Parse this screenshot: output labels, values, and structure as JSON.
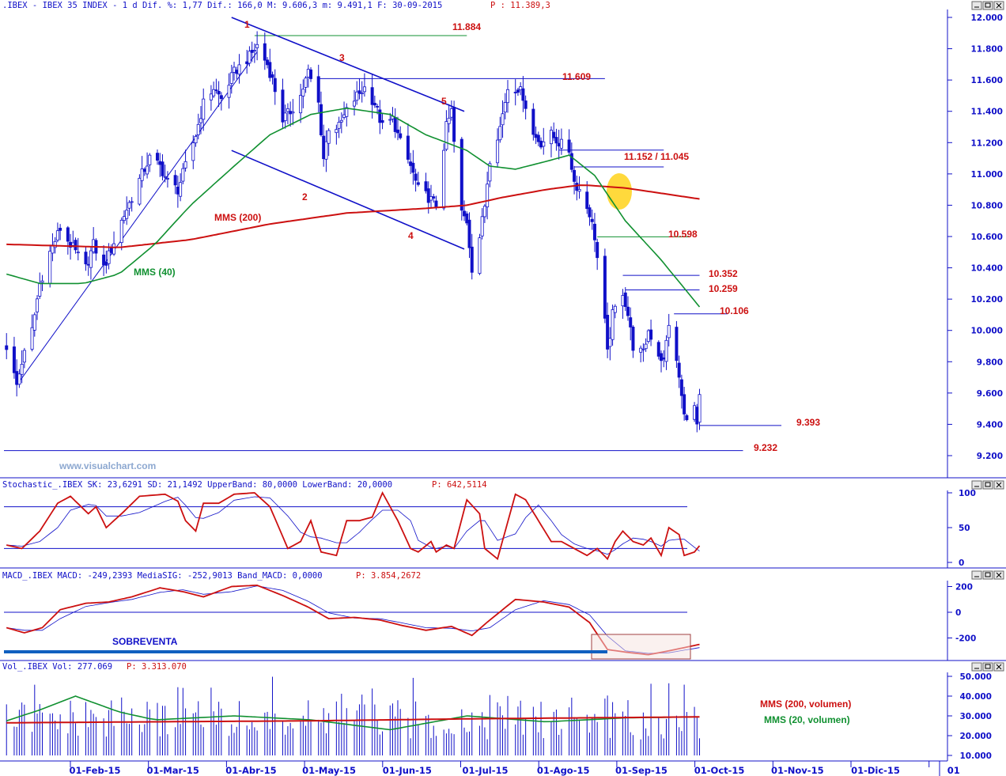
{
  "header": {
    "main": ".IBEX - IBEX 35 INDEX -   1 d Dif. %: 1,77 Dif.: 166,0 M: 9.606,3 m: 9.491,1 F: 30-09-2015",
    "main_p": "P : 11.389,3",
    "stoch": "Stochastic_.IBEX SK: 23,6291 SD: 21,1492 UpperBand: 80,0000 LowerBand: 20,0000",
    "stoch_p": "P: 642,5114",
    "macd": "MACD_.IBEX MACD: -249,2393 MediaSIG: -252,9013 Band_MACD: 0,0000",
    "macd_p": "P: 3.854,2672",
    "vol": "Vol_.IBEX Vol: 277.069",
    "vol_p": "P: 3.313.070"
  },
  "watermark": "www.visualchart.com",
  "colors": {
    "up": "#ffffff",
    "down": "#1010c8",
    "mms200": "#cc1010",
    "mms40": "#109030",
    "trend": "#1010c8",
    "label": "#cc1010",
    "grid": "#1010c8"
  },
  "annotations": {
    "mms200": "MMS (200)",
    "mms40": "MMS (40)",
    "sobreventa": "SOBREVENTA",
    "vol_mms200": "MMS (200, volumen)",
    "vol_mms20": "MMS (20, volumen)",
    "wave1": "1",
    "wave2": "2",
    "wave3": "3",
    "wave4": "4",
    "wave5": "5",
    "lvl_11884": "11.884",
    "lvl_11609": "11.609",
    "lvl_11152": "11.152 / 11.045",
    "lvl_10598": "10.598",
    "lvl_10352": "10.352",
    "lvl_10259": "10.259",
    "lvl_10106": "10.106",
    "lvl_9393": "9.393",
    "lvl_9232": "9.232"
  },
  "chart_data": [
    {
      "type": "candlestick",
      "title": "IBEX 35 INDEX",
      "ylim": [
        9100,
        12100
      ],
      "y_ticks": [
        "12.000",
        "11.800",
        "11.600",
        "11.400",
        "11.200",
        "11.000",
        "10.800",
        "10.600",
        "10.400",
        "10.200",
        "10.000",
        "9.800",
        "9.600",
        "9.400",
        "9.200"
      ],
      "x_ticks": [
        "01-Feb-15",
        "01-Mar-15",
        "01-Abr-15",
        "01-May-15",
        "01-Jun-15",
        "01-Jul-15",
        "01-Ago-15",
        "01-Sep-15",
        "01-Oct-15",
        "01-Nov-15",
        "01-Dic-15",
        "01"
      ],
      "close_anchors": [
        [
          "2015-01-02",
          9900
        ],
        [
          "2015-01-06",
          9650
        ],
        [
          "2015-01-08",
          9800
        ],
        [
          "2015-01-12",
          10000
        ],
        [
          "2015-01-15",
          10300
        ],
        [
          "2015-01-19",
          10500
        ],
        [
          "2015-01-23",
          10650
        ],
        [
          "2015-01-27",
          10550
        ],
        [
          "2015-02-02",
          10400
        ],
        [
          "2015-02-05",
          10550
        ],
        [
          "2015-02-09",
          10400
        ],
        [
          "2015-02-12",
          10520
        ],
        [
          "2015-02-16",
          10700
        ],
        [
          "2015-02-20",
          10850
        ],
        [
          "2015-02-24",
          11000
        ],
        [
          "2015-02-27",
          11100
        ],
        [
          "2015-03-03",
          11050
        ],
        [
          "2015-03-06",
          10950
        ],
        [
          "2015-03-10",
          10900
        ],
        [
          "2015-03-13",
          11050
        ],
        [
          "2015-03-17",
          11250
        ],
        [
          "2015-03-20",
          11450
        ],
        [
          "2015-03-24",
          11550
        ],
        [
          "2015-03-27",
          11480
        ],
        [
          "2015-04-01",
          11650
        ],
        [
          "2015-04-07",
          11750
        ],
        [
          "2015-04-10",
          11820
        ],
        [
          "2015-04-14",
          11700
        ],
        [
          "2015-04-16",
          11600
        ],
        [
          "2015-04-20",
          11350
        ],
        [
          "2015-04-23",
          11400
        ],
        [
          "2015-04-27",
          11500
        ],
        [
          "2015-04-30",
          11650
        ],
        [
          "2015-05-04",
          11450
        ],
        [
          "2015-05-06",
          11100
        ],
        [
          "2015-05-08",
          11300
        ],
        [
          "2015-05-12",
          11300
        ],
        [
          "2015-05-15",
          11400
        ],
        [
          "2015-05-19",
          11500
        ],
        [
          "2015-05-22",
          11550
        ],
        [
          "2015-05-26",
          11450
        ],
        [
          "2015-05-29",
          11300
        ],
        [
          "2015-06-02",
          11350
        ],
        [
          "2015-06-05",
          11200
        ],
        [
          "2015-06-09",
          11050
        ],
        [
          "2015-06-12",
          10900
        ],
        [
          "2015-06-16",
          10850
        ],
        [
          "2015-06-19",
          10800
        ],
        [
          "2015-06-23",
          11300
        ],
        [
          "2015-06-25",
          11400
        ],
        [
          "2015-06-26",
          11200
        ],
        [
          "2015-06-29",
          10750
        ],
        [
          "2015-07-01",
          10700
        ],
        [
          "2015-07-03",
          10400
        ],
        [
          "2015-07-06",
          10600
        ],
        [
          "2015-07-08",
          10800
        ],
        [
          "2015-07-10",
          11100
        ],
        [
          "2015-07-14",
          11300
        ],
        [
          "2015-07-17",
          11550
        ],
        [
          "2015-07-21",
          11550
        ],
        [
          "2015-07-23",
          11500
        ],
        [
          "2015-07-27",
          11250
        ],
        [
          "2015-07-30",
          11200
        ],
        [
          "2015-08-03",
          11250
        ],
        [
          "2015-08-06",
          11200
        ],
        [
          "2015-08-10",
          11150
        ],
        [
          "2015-08-12",
          10950
        ],
        [
          "2015-08-14",
          10900
        ],
        [
          "2015-08-18",
          10750
        ],
        [
          "2015-08-20",
          10600
        ],
        [
          "2015-08-24",
          10050
        ],
        [
          "2015-08-25",
          9850
        ],
        [
          "2015-08-27",
          10100
        ],
        [
          "2015-08-31",
          10250
        ],
        [
          "2015-09-02",
          10100
        ],
        [
          "2015-09-04",
          9900
        ],
        [
          "2015-09-08",
          9850
        ],
        [
          "2015-09-10",
          10000
        ],
        [
          "2015-09-14",
          9850
        ],
        [
          "2015-09-16",
          9800
        ],
        [
          "2015-09-18",
          10050
        ],
        [
          "2015-09-22",
          9700
        ],
        [
          "2015-09-24",
          9450
        ],
        [
          "2015-09-28",
          9500
        ],
        [
          "2015-09-29",
          9393
        ],
        [
          "2015-09-30",
          9560
        ]
      ],
      "mms200": [
        [
          "2015-01-02",
          10550
        ],
        [
          "2015-02-15",
          10530
        ],
        [
          "2015-03-15",
          10580
        ],
        [
          "2015-04-15",
          10680
        ],
        [
          "2015-05-15",
          10750
        ],
        [
          "2015-06-15",
          10780
        ],
        [
          "2015-07-01",
          10800
        ],
        [
          "2015-07-15",
          10850
        ],
        [
          "2015-08-01",
          10900
        ],
        [
          "2015-08-15",
          10930
        ],
        [
          "2015-09-01",
          10910
        ],
        [
          "2015-09-30",
          10840
        ]
      ],
      "mms40": [
        [
          "2015-01-02",
          10360
        ],
        [
          "2015-01-15",
          10300
        ],
        [
          "2015-02-01",
          10300
        ],
        [
          "2015-02-15",
          10360
        ],
        [
          "2015-03-01",
          10550
        ],
        [
          "2015-03-15",
          10800
        ],
        [
          "2015-04-01",
          11050
        ],
        [
          "2015-04-15",
          11250
        ],
        [
          "2015-05-01",
          11380
        ],
        [
          "2015-05-15",
          11420
        ],
        [
          "2015-06-01",
          11380
        ],
        [
          "2015-06-15",
          11250
        ],
        [
          "2015-07-01",
          11150
        ],
        [
          "2015-07-10",
          11050
        ],
        [
          "2015-07-20",
          11030
        ],
        [
          "2015-08-01",
          11080
        ],
        [
          "2015-08-10",
          11120
        ],
        [
          "2015-08-20",
          10990
        ],
        [
          "2015-09-01",
          10700
        ],
        [
          "2015-09-15",
          10450
        ],
        [
          "2015-09-30",
          10150
        ]
      ],
      "trend_lines": [
        [
          [
            "2015-03-31",
            12000
          ],
          [
            "2015-06-30",
            11400
          ]
        ],
        [
          [
            "2015-03-31",
            11150
          ],
          [
            "2015-06-30",
            10520
          ]
        ],
        [
          [
            "2015-01-06",
            9650
          ],
          [
            "2015-04-10",
            11780
          ]
        ]
      ],
      "levels": [
        {
          "value": 11884,
          "from": "2015-04-09",
          "to": "2015-07-01",
          "color": "#109030"
        },
        {
          "value": 11609,
          "from": "2015-05-04",
          "to": "2015-08-24",
          "color": "#1010c8"
        },
        {
          "value": 11152,
          "from": "2015-08-06",
          "to": "2015-09-16",
          "color": "#1010c8"
        },
        {
          "value": 11045,
          "from": "2015-08-12",
          "to": "2015-09-16",
          "color": "#1010c8"
        },
        {
          "value": 10598,
          "from": "2015-08-21",
          "to": "2015-09-26",
          "color": "#109030"
        },
        {
          "value": 10352,
          "from": "2015-08-31",
          "to": "2015-09-30",
          "color": "#1010c8"
        },
        {
          "value": 10259,
          "from": "2015-09-01",
          "to": "2015-09-30",
          "color": "#1010c8"
        },
        {
          "value": 10106,
          "from": "2015-09-20",
          "to": "2015-10-11",
          "color": "#1010c8"
        },
        {
          "value": 9393,
          "from": "2015-09-30",
          "to": "2015-11-01",
          "color": "#1010c8"
        },
        {
          "value": 9232,
          "from": "2015-01-01",
          "to": "2015-10-17",
          "color": "#1010c8"
        }
      ]
    },
    {
      "type": "line",
      "title": "Stochastic_.IBEX",
      "ylim": [
        -5,
        105
      ],
      "y_ticks": [
        "100",
        "50",
        "0"
      ],
      "bands": [
        80,
        20
      ],
      "sk_anchors": [
        [
          "2015-01-02",
          25
        ],
        [
          "2015-01-08",
          20
        ],
        [
          "2015-01-15",
          45
        ],
        [
          "2015-01-22",
          85
        ],
        [
          "2015-01-27",
          95
        ],
        [
          "2015-02-03",
          70
        ],
        [
          "2015-02-06",
          80
        ],
        [
          "2015-02-10",
          50
        ],
        [
          "2015-02-16",
          70
        ],
        [
          "2015-02-23",
          95
        ],
        [
          "2015-03-05",
          98
        ],
        [
          "2015-03-10",
          88
        ],
        [
          "2015-03-13",
          60
        ],
        [
          "2015-03-17",
          45
        ],
        [
          "2015-03-20",
          85
        ],
        [
          "2015-03-26",
          85
        ],
        [
          "2015-04-01",
          98
        ],
        [
          "2015-04-09",
          100
        ],
        [
          "2015-04-15",
          80
        ],
        [
          "2015-04-22",
          20
        ],
        [
          "2015-04-27",
          30
        ],
        [
          "2015-05-01",
          60
        ],
        [
          "2015-05-05",
          15
        ],
        [
          "2015-05-11",
          10
        ],
        [
          "2015-05-15",
          60
        ],
        [
          "2015-05-20",
          60
        ],
        [
          "2015-05-25",
          65
        ],
        [
          "2015-05-29",
          100
        ],
        [
          "2015-06-04",
          60
        ],
        [
          "2015-06-09",
          20
        ],
        [
          "2015-06-12",
          15
        ],
        [
          "2015-06-17",
          30
        ],
        [
          "2015-06-19",
          15
        ],
        [
          "2015-06-23",
          25
        ],
        [
          "2015-06-26",
          20
        ],
        [
          "2015-07-01",
          90
        ],
        [
          "2015-07-06",
          70
        ],
        [
          "2015-07-08",
          20
        ],
        [
          "2015-07-13",
          5
        ],
        [
          "2015-07-20",
          98
        ],
        [
          "2015-07-24",
          90
        ],
        [
          "2015-07-29",
          60
        ],
        [
          "2015-08-03",
          30
        ],
        [
          "2015-08-07",
          30
        ],
        [
          "2015-08-12",
          20
        ],
        [
          "2015-08-17",
          10
        ],
        [
          "2015-08-21",
          20
        ],
        [
          "2015-08-25",
          5
        ],
        [
          "2015-08-28",
          30
        ],
        [
          "2015-08-31",
          45
        ],
        [
          "2015-09-04",
          30
        ],
        [
          "2015-09-08",
          25
        ],
        [
          "2015-09-11",
          35
        ],
        [
          "2015-09-15",
          10
        ],
        [
          "2015-09-18",
          50
        ],
        [
          "2015-09-22",
          40
        ],
        [
          "2015-09-24",
          10
        ],
        [
          "2015-09-28",
          15
        ],
        [
          "2015-09-30",
          24
        ]
      ]
    },
    {
      "type": "line",
      "title": "MACD_.IBEX",
      "ylim": [
        -360,
        260
      ],
      "y_ticks": [
        "200",
        "0",
        "-200"
      ],
      "macd_anchors": [
        [
          "2015-01-02",
          -120
        ],
        [
          "2015-01-09",
          -160
        ],
        [
          "2015-01-16",
          -120
        ],
        [
          "2015-01-23",
          20
        ],
        [
          "2015-02-02",
          70
        ],
        [
          "2015-02-11",
          80
        ],
        [
          "2015-02-20",
          120
        ],
        [
          "2015-03-03",
          190
        ],
        [
          "2015-03-12",
          160
        ],
        [
          "2015-03-20",
          120
        ],
        [
          "2015-03-31",
          200
        ],
        [
          "2015-04-10",
          210
        ],
        [
          "2015-04-20",
          130
        ],
        [
          "2015-04-30",
          40
        ],
        [
          "2015-05-08",
          -50
        ],
        [
          "2015-05-18",
          -40
        ],
        [
          "2015-05-28",
          -60
        ],
        [
          "2015-06-05",
          -100
        ],
        [
          "2015-06-15",
          -140
        ],
        [
          "2015-06-25",
          -110
        ],
        [
          "2015-07-03",
          -180
        ],
        [
          "2015-07-10",
          -60
        ],
        [
          "2015-07-20",
          100
        ],
        [
          "2015-07-31",
          80
        ],
        [
          "2015-08-10",
          40
        ],
        [
          "2015-08-18",
          -80
        ],
        [
          "2015-08-25",
          -290
        ],
        [
          "2015-09-01",
          -310
        ],
        [
          "2015-09-10",
          -330
        ],
        [
          "2015-09-18",
          -300
        ],
        [
          "2015-09-30",
          -250
        ]
      ]
    },
    {
      "type": "bar",
      "title": "Vol_.IBEX",
      "ylim": [
        0,
        52000
      ],
      "y_ticks": [
        "50.000",
        "40.000",
        "30.000",
        "20.000",
        "10.000"
      ],
      "vol_ma200": [
        [
          "2015-01-02",
          26500
        ],
        [
          "2015-03-01",
          27000
        ],
        [
          "2015-05-01",
          27500
        ],
        [
          "2015-07-01",
          28500
        ],
        [
          "2015-09-30",
          29500
        ]
      ],
      "vol_ma20": [
        [
          "2015-01-02",
          27500
        ],
        [
          "2015-01-15",
          33000
        ],
        [
          "2015-01-29",
          40000
        ],
        [
          "2015-02-15",
          32000
        ],
        [
          "2015-03-01",
          28000
        ],
        [
          "2015-04-01",
          30000
        ],
        [
          "2015-05-01",
          28000
        ],
        [
          "2015-06-01",
          23000
        ],
        [
          "2015-07-01",
          30000
        ],
        [
          "2015-08-01",
          27000
        ],
        [
          "2015-09-01",
          29000
        ],
        [
          "2015-09-30",
          29500
        ]
      ]
    }
  ]
}
